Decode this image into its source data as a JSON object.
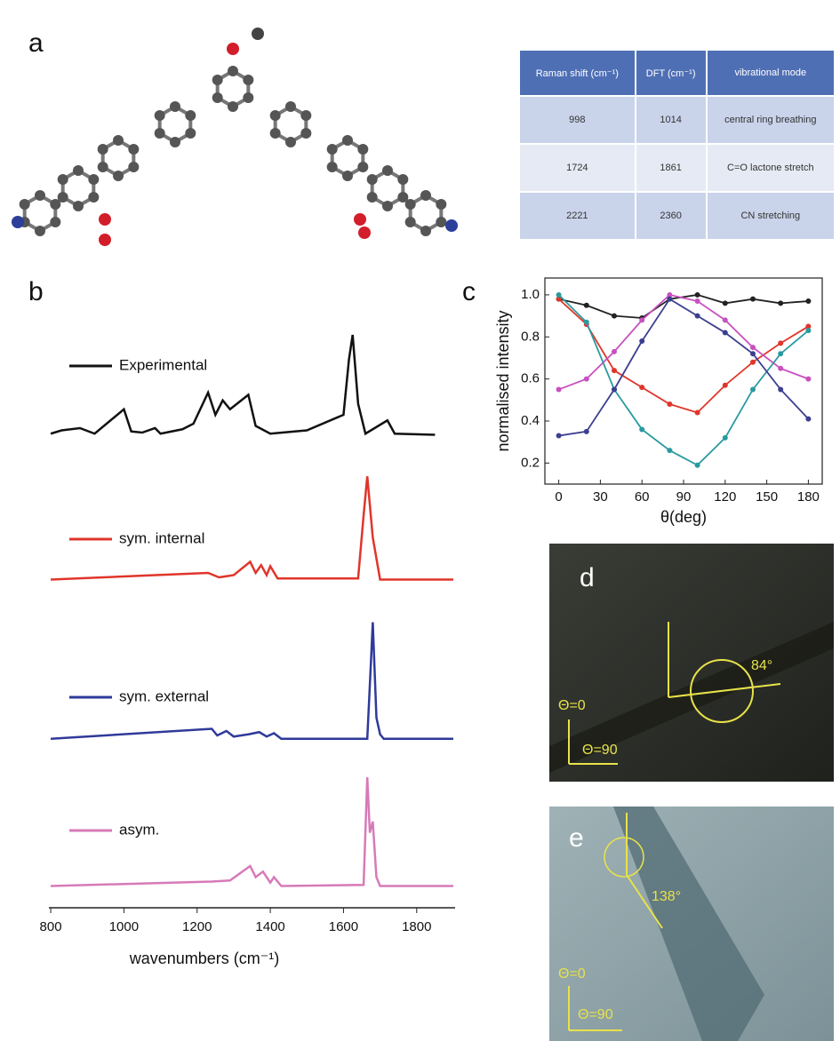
{
  "panel_labels": [
    "a",
    "b",
    "c"
  ],
  "table": {
    "header": [
      "Raman shift (cm⁻¹)",
      "DFT (cm⁻¹)",
      "vibrational mode"
    ],
    "rows": [
      [
        "998",
        "1014",
        "central ring breathing"
      ],
      [
        "1724",
        "1861",
        "C=O lactone stretch"
      ],
      [
        "2221",
        "2360",
        "CN stretching"
      ]
    ]
  },
  "chart_data": [
    {
      "type": "line",
      "xlabel": "wavenumbers (cm⁻¹)",
      "xlim": [
        795,
        1905
      ],
      "xticks": [
        800,
        1000,
        1200,
        1400,
        1600,
        1800
      ],
      "series": [
        {
          "name": "Experimental",
          "color": "#111111",
          "x": [
            800,
            830,
            880,
            920,
            1000,
            1020,
            1050,
            1085,
            1100,
            1160,
            1190,
            1230,
            1250,
            1270,
            1290,
            1340,
            1360,
            1400,
            1500,
            1600,
            1615,
            1625,
            1640,
            1660,
            1720,
            1740,
            1850
          ],
          "values": [
            0.03,
            0.06,
            0.08,
            0.03,
            0.25,
            0.05,
            0.04,
            0.08,
            0.03,
            0.07,
            0.12,
            0.4,
            0.2,
            0.33,
            0.25,
            0.38,
            0.1,
            0.03,
            0.06,
            0.2,
            0.7,
            0.92,
            0.3,
            0.03,
            0.15,
            0.03,
            0.02
          ]
        },
        {
          "name": "sym. internal",
          "color": "#e0352b",
          "x": [
            800,
            1230,
            1260,
            1300,
            1345,
            1360,
            1375,
            1390,
            1400,
            1420,
            1640,
            1655,
            1665,
            1680,
            1700,
            1900
          ],
          "values": [
            0.02,
            0.08,
            0.04,
            0.06,
            0.18,
            0.08,
            0.15,
            0.06,
            0.14,
            0.03,
            0.03,
            0.6,
            0.95,
            0.4,
            0.02,
            0.02
          ]
        },
        {
          "name": "sym. external",
          "color": "#2f3a9a",
          "x": [
            800,
            1240,
            1255,
            1280,
            1300,
            1340,
            1370,
            1390,
            1410,
            1430,
            1665,
            1675,
            1680,
            1690,
            1700,
            1710,
            1900
          ],
          "values": [
            0.01,
            0.1,
            0.04,
            0.08,
            0.03,
            0.05,
            0.07,
            0.03,
            0.06,
            0.01,
            0.01,
            0.7,
            1.06,
            0.2,
            0.05,
            0.01,
            0.01
          ]
        },
        {
          "name": "asym.",
          "color": "#d77ab8",
          "x": [
            800,
            1240,
            1290,
            1345,
            1360,
            1380,
            1400,
            1410,
            1430,
            1655,
            1665,
            1672,
            1680,
            1690,
            1700,
            1900
          ],
          "values": [
            0.02,
            0.06,
            0.07,
            0.2,
            0.1,
            0.15,
            0.05,
            0.1,
            0.02,
            0.03,
            1.0,
            0.5,
            0.6,
            0.1,
            0.02,
            0.02
          ]
        }
      ]
    },
    {
      "type": "line",
      "xlabel": "θ(deg)",
      "ylabel": "normalised intensity",
      "xlim": [
        -10,
        190
      ],
      "ylim": [
        0.1,
        1.08
      ],
      "xticks": [
        0,
        30,
        60,
        90,
        120,
        150,
        180
      ],
      "yticks": [
        0.2,
        0.4,
        0.6,
        0.8,
        {
          "value": 1.0,
          "label": "1.0"
        }
      ],
      "x": [
        0,
        20,
        40,
        60,
        80,
        100,
        120,
        140,
        160,
        180
      ],
      "series": [
        {
          "color": "#222222",
          "values": [
            0.98,
            0.95,
            0.9,
            0.89,
            0.98,
            1.0,
            0.96,
            0.98,
            0.96,
            0.97
          ]
        },
        {
          "color": "#e0352b",
          "values": [
            0.98,
            0.86,
            0.64,
            0.56,
            0.48,
            0.44,
            0.57,
            0.68,
            0.77,
            0.85
          ]
        },
        {
          "color": "#c850c0",
          "values": [
            0.55,
            0.6,
            0.73,
            0.88,
            1.0,
            0.97,
            0.88,
            0.75,
            0.65,
            0.6
          ]
        },
        {
          "color": "#2a9aa0",
          "values": [
            1.0,
            0.87,
            0.55,
            0.36,
            0.26,
            0.19,
            0.32,
            0.55,
            0.72,
            0.83
          ]
        },
        {
          "color": "#3b3f8f",
          "values": [
            0.33,
            0.35,
            0.55,
            0.78,
            0.98,
            0.9,
            0.82,
            0.72,
            0.55,
            0.41
          ]
        }
      ]
    }
  ],
  "images": [
    {
      "label": "d",
      "angle": "84°",
      "axis_0": "Θ=0",
      "axis_90": "Θ=90"
    },
    {
      "label": "e",
      "angle": "138°",
      "axis_0": "Θ=0",
      "axis_90": "Θ=90"
    }
  ]
}
